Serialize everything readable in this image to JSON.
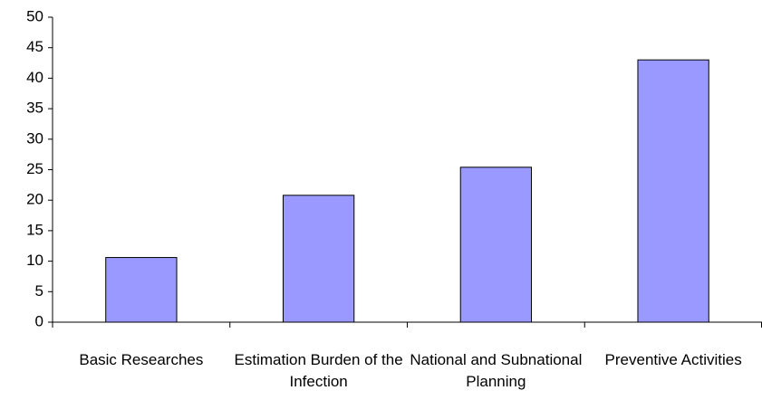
{
  "chart_data": {
    "type": "bar",
    "categories": [
      "Basic Researches",
      "Estimation Burden of the Infection",
      "National and Subnational Planning",
      "Preventive Activities"
    ],
    "values": [
      10.6,
      20.8,
      25.4,
      43
    ],
    "color": "#9999ff",
    "ylim": [
      0,
      50
    ],
    "yticks": [
      0,
      5,
      10,
      15,
      20,
      25,
      30,
      35,
      40,
      45,
      50
    ],
    "grid": false
  }
}
